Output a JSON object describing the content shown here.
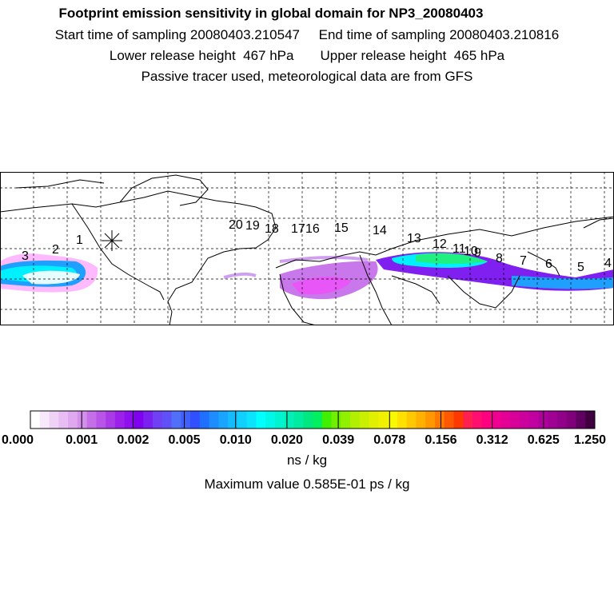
{
  "header": {
    "title": "Footprint emission sensitivity in global domain for NP3_20080403",
    "line2": "Start time of sampling 20080403.210547     End time of sampling 20080403.210816",
    "line3": "Lower release height  467 hPa       Upper release height  465 hPa",
    "line4": "Passive tracer used, meteorological data are from GFS"
  },
  "map": {
    "trajectory_labels": [
      "1",
      "2",
      "3",
      "4",
      "5",
      "6",
      "7",
      "8",
      "9",
      "10",
      "11",
      "12",
      "13",
      "14",
      "15",
      "16",
      "17",
      "18",
      "19",
      "20"
    ],
    "release_marker": "star-icon"
  },
  "colorbar": {
    "tick_labels": [
      "0.000",
      "0.001",
      "0.002",
      "0.005",
      "0.010",
      "0.020",
      "0.039",
      "0.078",
      "0.156",
      "0.312",
      "0.625",
      "1.250"
    ],
    "colors": [
      "#ffffff",
      "#f7e8fb",
      "#efd3f7",
      "#e8bdf3",
      "#e0a8ef",
      "#d48eeb",
      "#c46fe8",
      "#b855e8",
      "#aa3ae8",
      "#9c20ea",
      "#8e10ee",
      "#8000f0",
      "#7a20f0",
      "#7040f4",
      "#6050f8",
      "#5070fa",
      "#4060fc",
      "#3050ff",
      "#2070ff",
      "#1c8cff",
      "#18a4ff",
      "#14bcff",
      "#10d0ff",
      "#0ce4ff",
      "#00ffff",
      "#00f8e8",
      "#00f4d0",
      "#00f0b8",
      "#00eca0",
      "#00e880",
      "#00f060",
      "#40f000",
      "#70f000",
      "#90f000",
      "#b0f000",
      "#c8f000",
      "#e0f000",
      "#f0f000",
      "#f8f800",
      "#ffe000",
      "#ffc800",
      "#ffb000",
      "#ff9800",
      "#ff7800",
      "#ff5800",
      "#ff3800",
      "#ff2050",
      "#ff1070",
      "#ff0080",
      "#f00090",
      "#e40094",
      "#d80098",
      "#cc009c",
      "#c000a0",
      "#b0009c",
      "#a00094",
      "#900088",
      "#80007c",
      "#600060",
      "#400040"
    ],
    "unit": "ns / kg",
    "max_text": "Maximum value  0.585E-01 ps / kg"
  }
}
